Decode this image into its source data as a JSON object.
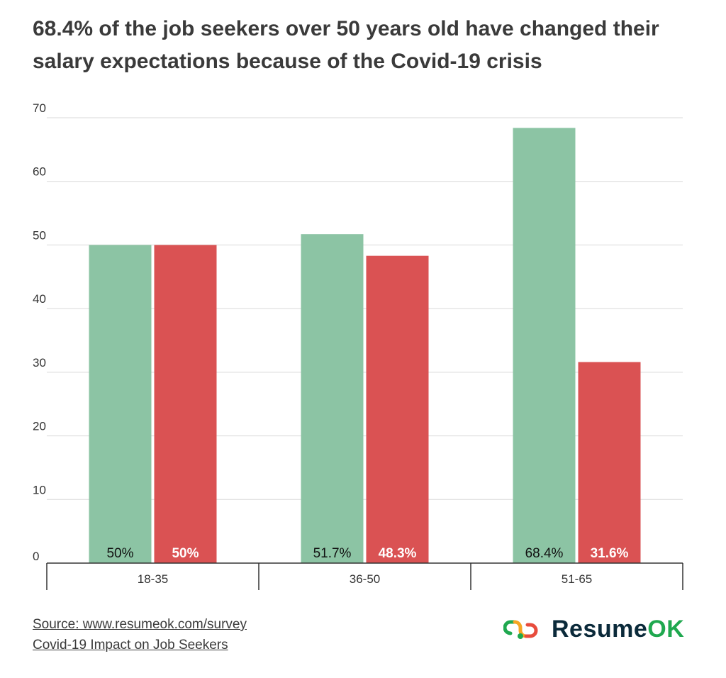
{
  "chart_data": {
    "type": "bar",
    "title": "68.4% of the job seekers over 50 years old have changed their salary expectations because of the Covid-19 crisis",
    "categories": [
      "18-35",
      "36-50",
      "51-65"
    ],
    "series": [
      {
        "values": [
          50,
          51.7,
          68.4
        ],
        "labels": [
          "50%",
          "51.7%",
          "68.4%"
        ],
        "color": "#8cc4a4",
        "label_color": "#111111"
      },
      {
        "values": [
          50,
          48.3,
          31.6
        ],
        "labels": [
          "50%",
          "48.3%",
          "31.6%"
        ],
        "color": "#da5253",
        "label_color": "#ffffff"
      }
    ],
    "ylim": [
      0,
      70
    ],
    "yticks": [
      0,
      10,
      20,
      30,
      40,
      50,
      60,
      70
    ],
    "grid": true,
    "legend": "none"
  },
  "footer": {
    "source": "Source: www.resumeok.com/survey",
    "study": "Covid-19 Impact on Job Seekers"
  },
  "logo": {
    "name": "ResumeOK",
    "text_main": "Resume",
    "text_accent": "OK",
    "icon": "paperclip-link-icon",
    "colors": [
      "#1fa84f",
      "#f6a623",
      "#e84c3d"
    ]
  }
}
